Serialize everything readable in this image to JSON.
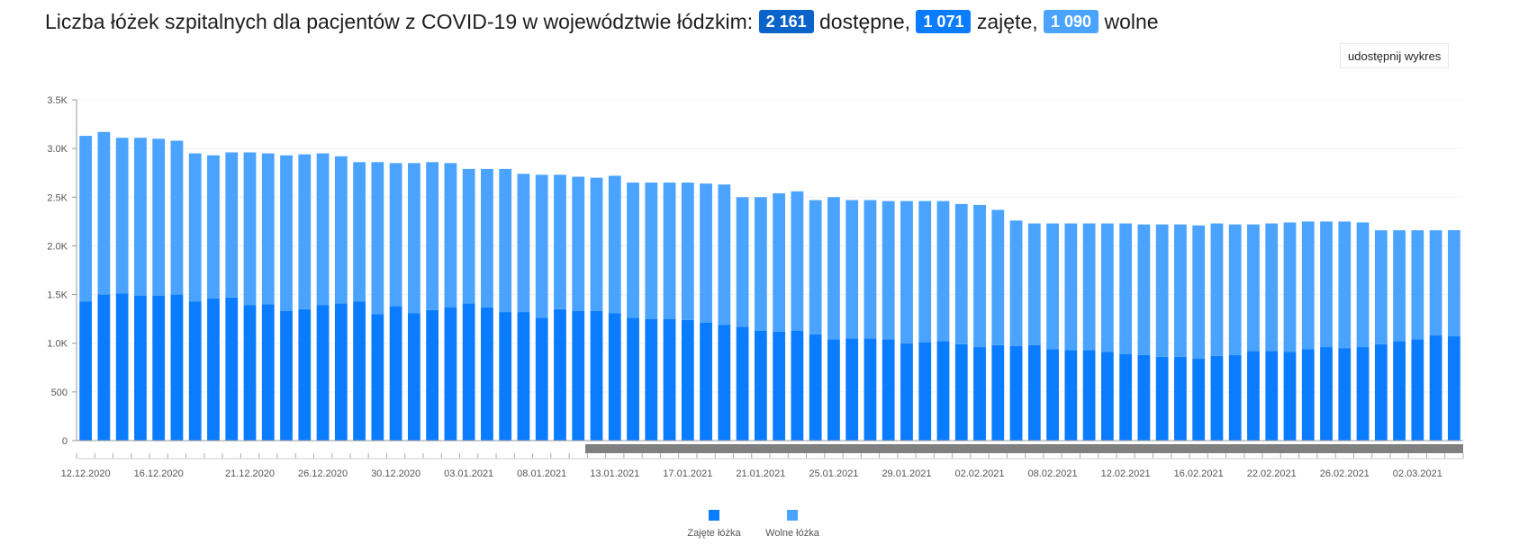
{
  "title": {
    "prefix": "Liczba łóżek szpitalnych dla pacjentów z COVID-19 w województwie łódzkim:",
    "available_value": "2 161",
    "available_label": "dostępne,",
    "occupied_value": "1 071",
    "occupied_label": "zajęte,",
    "free_value": "1 090",
    "free_label": "wolne"
  },
  "share_button": {
    "label": "udostępnij wykres"
  },
  "colors": {
    "occupied": "#0a7cff",
    "free": "#4aa3ff",
    "badge_available": "#0a63c9",
    "badge_occupied": "#0a7cff",
    "badge_free": "#4aa3ff",
    "scrollbar": "#808080"
  },
  "chart_data": {
    "type": "bar",
    "stacked": true,
    "title": "",
    "xlabel": "",
    "ylabel": "",
    "ylim": [
      0,
      3500
    ],
    "y_ticks": [
      0,
      500,
      1000,
      1500,
      2000,
      2500,
      3000,
      3500
    ],
    "y_tick_labels": [
      "0",
      "500",
      "1.0K",
      "1.5K",
      "2.0K",
      "2.5K",
      "3.0K",
      "3.5K"
    ],
    "grid": true,
    "legend_position": "bottom-center",
    "x_tick_labels": [
      {
        "index": 0,
        "label": "12.12.2020"
      },
      {
        "index": 4,
        "label": "16.12.2020"
      },
      {
        "index": 9,
        "label": "21.12.2020"
      },
      {
        "index": 13,
        "label": "26.12.2020"
      },
      {
        "index": 17,
        "label": "30.12.2020"
      },
      {
        "index": 21,
        "label": "03.01.2021"
      },
      {
        "index": 25,
        "label": "08.01.2021"
      },
      {
        "index": 29,
        "label": "13.01.2021"
      },
      {
        "index": 33,
        "label": "17.01.2021"
      },
      {
        "index": 37,
        "label": "21.01.2021"
      },
      {
        "index": 41,
        "label": "25.01.2021"
      },
      {
        "index": 45,
        "label": "29.01.2021"
      },
      {
        "index": 49,
        "label": "02.02.2021"
      },
      {
        "index": 53,
        "label": "08.02.2021"
      },
      {
        "index": 57,
        "label": "12.02.2021"
      },
      {
        "index": 61,
        "label": "16.02.2021"
      },
      {
        "index": 65,
        "label": "22.02.2021"
      },
      {
        "index": 69,
        "label": "26.02.2021"
      },
      {
        "index": 73,
        "label": "02.03.2021"
      }
    ],
    "series": [
      {
        "name": "Zajęte łóżka",
        "color": "#0a7cff",
        "values": [
          1430,
          1500,
          1510,
          1490,
          1490,
          1500,
          1430,
          1460,
          1470,
          1390,
          1400,
          1330,
          1350,
          1390,
          1410,
          1430,
          1300,
          1380,
          1310,
          1340,
          1370,
          1410,
          1370,
          1320,
          1320,
          1260,
          1350,
          1330,
          1330,
          1310,
          1260,
          1250,
          1250,
          1240,
          1210,
          1190,
          1170,
          1130,
          1120,
          1130,
          1090,
          1040,
          1050,
          1050,
          1040,
          1000,
          1010,
          1020,
          990,
          960,
          980,
          970,
          980,
          940,
          930,
          930,
          910,
          890,
          880,
          860,
          860,
          840,
          870,
          880,
          920,
          920,
          910,
          940,
          960,
          950,
          960,
          990,
          1020,
          1040,
          1080,
          1071
        ]
      },
      {
        "name": "Wolne łóżka",
        "color": "#4aa3ff",
        "values": [
          1700,
          1670,
          1600,
          1620,
          1610,
          1580,
          1520,
          1470,
          1490,
          1570,
          1550,
          1600,
          1590,
          1560,
          1510,
          1430,
          1560,
          1470,
          1540,
          1520,
          1480,
          1380,
          1420,
          1470,
          1420,
          1470,
          1380,
          1380,
          1370,
          1410,
          1390,
          1400,
          1400,
          1410,
          1430,
          1440,
          1330,
          1370,
          1420,
          1430,
          1380,
          1460,
          1420,
          1420,
          1420,
          1460,
          1450,
          1440,
          1440,
          1460,
          1390,
          1290,
          1250,
          1290,
          1300,
          1300,
          1320,
          1340,
          1340,
          1360,
          1360,
          1370,
          1360,
          1340,
          1300,
          1310,
          1330,
          1310,
          1290,
          1300,
          1280,
          1170,
          1140,
          1120,
          1080,
          1090
        ]
      }
    ]
  }
}
